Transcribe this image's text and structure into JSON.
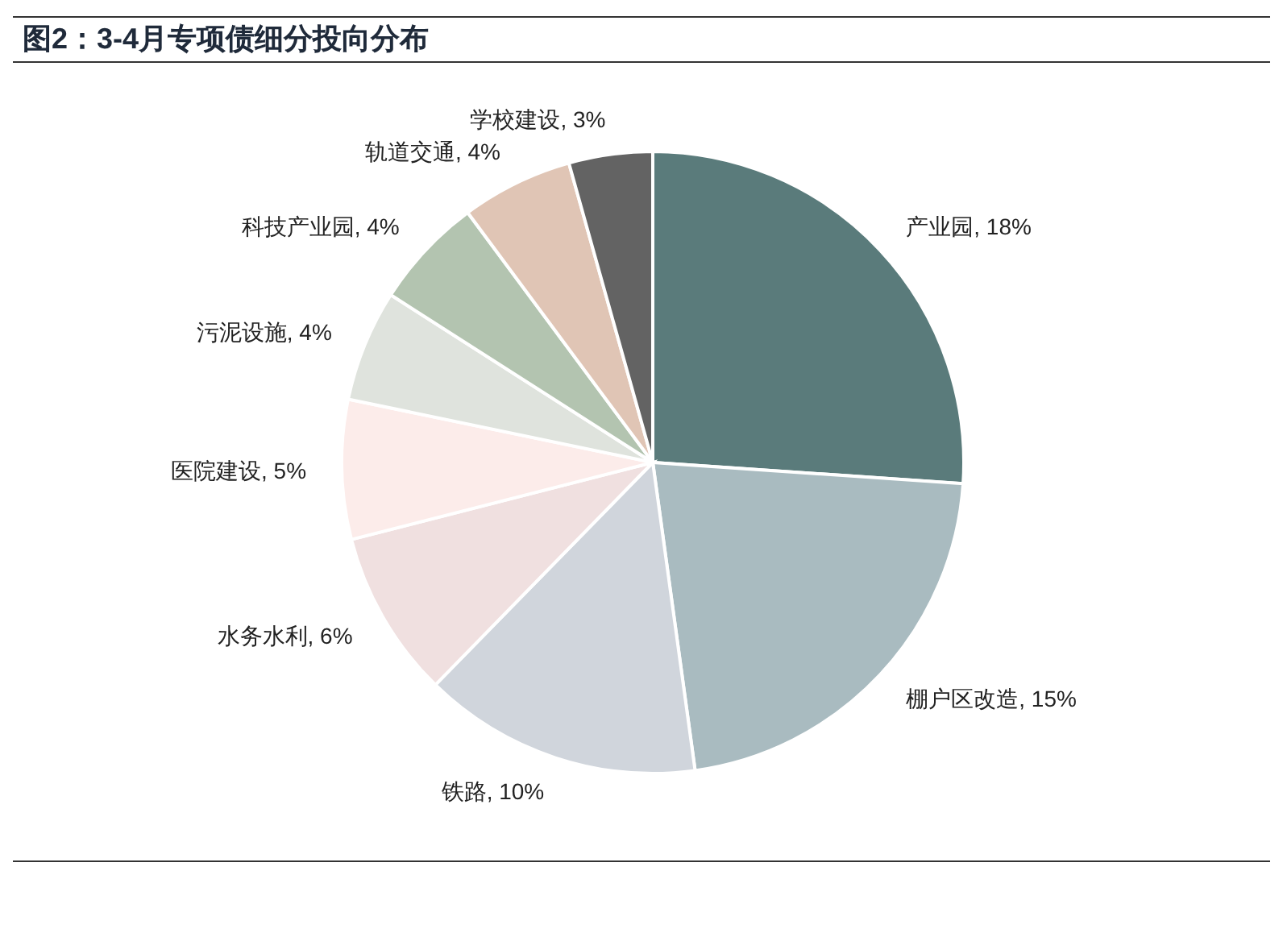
{
  "chart_data": {
    "type": "pie",
    "title": "图2：3-4月专项债细分投向分布",
    "categories": [
      "产业园",
      "棚户区改造",
      "铁路",
      "水务水利",
      "医院建设",
      "污泥设施",
      "科技产业园",
      "轨道交通",
      "学校建设"
    ],
    "values": [
      18,
      15,
      10,
      6,
      5,
      4,
      4,
      4,
      3
    ],
    "value_labels": [
      "18%",
      "15%",
      "10%",
      "6%",
      "5%",
      "4%",
      "4%",
      "4%",
      "3%"
    ],
    "colors": [
      "#5a7b7b",
      "#a9bbc0",
      "#d0d5dc",
      "#f0e0e0",
      "#fcecea",
      "#dfe3dd",
      "#b3c4b0",
      "#e0c5b5",
      "#636363"
    ],
    "legend": false
  }
}
